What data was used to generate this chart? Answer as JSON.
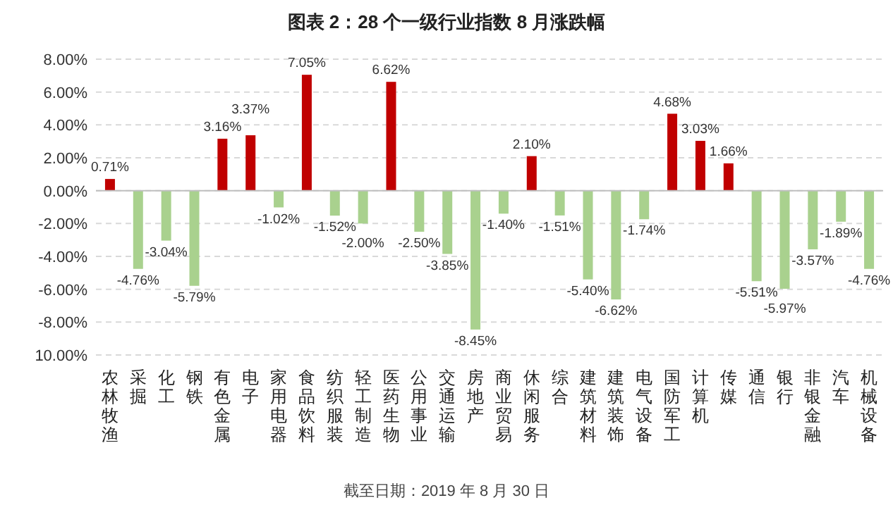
{
  "chart_data": {
    "type": "bar",
    "title": "图表 2：28 个一级行业指数 8 月涨跌幅",
    "categories": [
      "农林牧渔",
      "采掘",
      "化工",
      "钢铁",
      "有色金属",
      "电子",
      "家用电器",
      "食品饮料",
      "纺织服装",
      "轻工制造",
      "医药生物",
      "公用事业",
      "交通运输",
      "房地产",
      "商业贸易",
      "休闲服务",
      "综合",
      "建筑材料",
      "建筑装饰",
      "电气设备",
      "国防军工",
      "计算机",
      "传媒",
      "通信",
      "银行",
      "非银金融",
      "汽车",
      "机械设备"
    ],
    "values": [
      0.71,
      -4.76,
      -3.04,
      -5.79,
      3.16,
      3.37,
      -1.02,
      7.05,
      -1.52,
      -2.0,
      6.62,
      -2.5,
      -3.85,
      -8.45,
      -1.4,
      2.1,
      -1.51,
      -5.4,
      -6.62,
      -1.74,
      4.68,
      3.03,
      1.66,
      -5.51,
      -5.97,
      -3.57,
      -1.89,
      -4.76
    ],
    "value_labels": [
      "0.71%",
      "-4.76%",
      "-3.04%",
      "-5.79%",
      "3.16%",
      "3.37%",
      "-1.02%",
      "7.05%",
      "-1.52%",
      "-2.00%",
      "6.62%",
      "-2.50%",
      "-3.85%",
      "-8.45%",
      "-1.40%",
      "2.10%",
      "-1.51%",
      "-5.40%",
      "-6.62%",
      "-1.74%",
      "4.68%",
      "3.03%",
      "1.66%",
      "-5.51%",
      "-5.97%",
      "-3.57%",
      "-1.89%",
      "-4.76%"
    ],
    "colors": [
      "#c00000",
      "#a9d18e",
      "#a9d18e",
      "#a9d18e",
      "#c00000",
      "#c00000",
      "#a9d18e",
      "#c00000",
      "#a9d18e",
      "#a9d18e",
      "#c00000",
      "#a9d18e",
      "#a9d18e",
      "#a9d18e",
      "#a9d18e",
      "#c00000",
      "#a9d18e",
      "#a9d18e",
      "#a9d18e",
      "#a9d18e",
      "#c00000",
      "#c00000",
      "#c00000",
      "#a9d18e",
      "#a9d18e",
      "#a9d18e",
      "#a9d18e",
      "#a9d18e"
    ],
    "ylim": [
      -10,
      8
    ],
    "yticks": [
      {
        "value": -10,
        "label": "10.00%"
      },
      {
        "value": -8,
        "label": "-8.00%"
      },
      {
        "value": -6,
        "label": "-6.00%"
      },
      {
        "value": -4,
        "label": "-4.00%"
      },
      {
        "value": -2,
        "label": "-2.00%"
      },
      {
        "value": 0,
        "label": "0.00%"
      },
      {
        "value": 2,
        "label": "2.00%"
      },
      {
        "value": 4,
        "label": "4.00%"
      },
      {
        "value": 6,
        "label": "6.00%"
      },
      {
        "value": 8,
        "label": "8.00%"
      }
    ],
    "grid": "y",
    "annotations": [
      "截至日期：2019 年 8 月 30 日"
    ]
  }
}
